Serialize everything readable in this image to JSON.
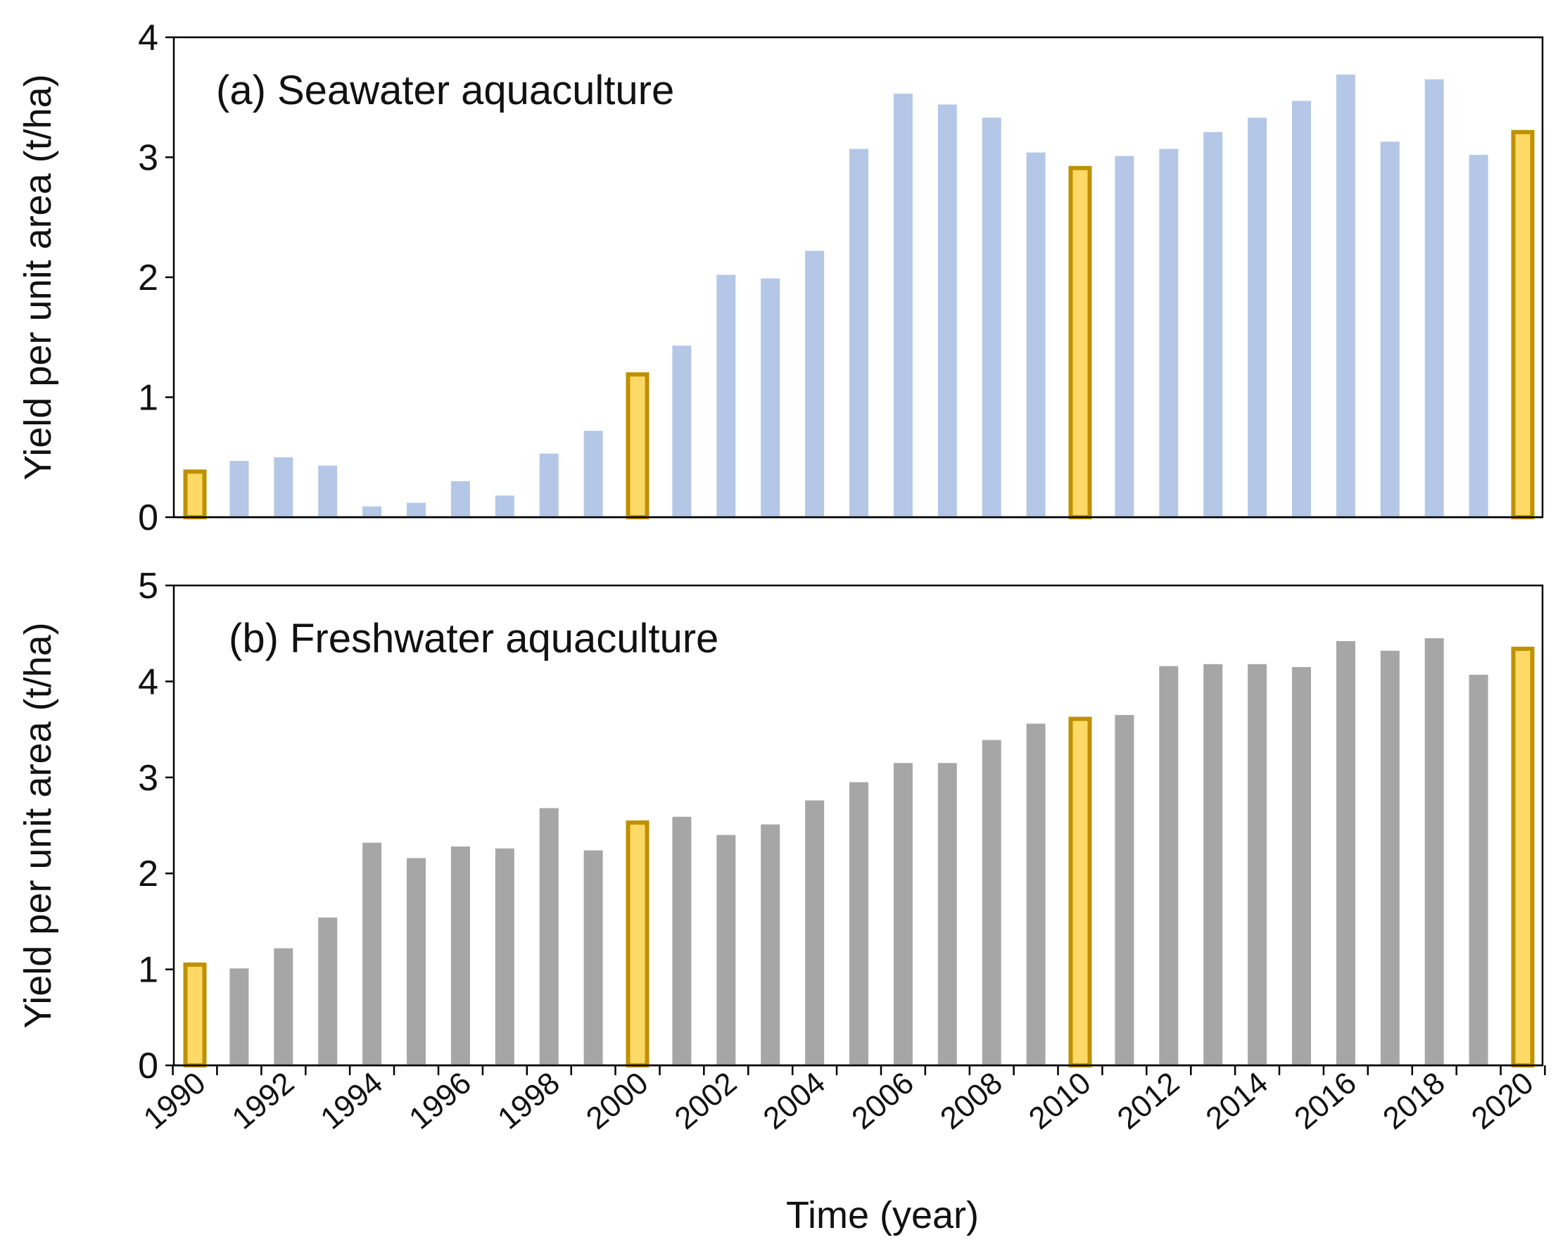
{
  "chart_data": [
    {
      "type": "bar",
      "panel": "a",
      "title": "(a) Seawater aquaculture",
      "ylabel": "Yield per unit area (t/ha)",
      "xlabel": "",
      "ylim": [
        0,
        4
      ],
      "yticks": [
        0,
        1,
        2,
        3,
        4
      ],
      "grid": false,
      "colors": {
        "bar": "#b4c7e7",
        "highlight_fill": "#ffd966",
        "highlight_border": "#bf9000"
      },
      "highlight_years": [
        1990,
        2000,
        2010,
        2020
      ],
      "x": [
        1990,
        1991,
        1992,
        1993,
        1994,
        1995,
        1996,
        1997,
        1998,
        1999,
        2000,
        2001,
        2002,
        2003,
        2004,
        2005,
        2006,
        2007,
        2008,
        2009,
        2010,
        2011,
        2012,
        2013,
        2014,
        2015,
        2016,
        2017,
        2018,
        2019,
        2020
      ],
      "values": [
        0.38,
        0.47,
        0.5,
        0.43,
        0.09,
        0.12,
        0.3,
        0.18,
        0.53,
        0.72,
        1.19,
        1.43,
        2.02,
        1.99,
        2.22,
        3.07,
        3.53,
        3.44,
        3.33,
        3.04,
        2.91,
        3.01,
        3.07,
        3.21,
        3.33,
        3.47,
        3.69,
        3.13,
        3.65,
        3.02,
        3.21
      ]
    },
    {
      "type": "bar",
      "panel": "b",
      "title": "(b) Freshwater aquaculture",
      "ylabel": "Yield per unit area (t/ha)",
      "xlabel": "Time (year)",
      "ylim": [
        0,
        5
      ],
      "yticks": [
        0,
        1,
        2,
        3,
        4,
        5
      ],
      "grid": false,
      "colors": {
        "bar": "#a6a6a6",
        "highlight_fill": "#ffd966",
        "highlight_border": "#bf9000"
      },
      "highlight_years": [
        1990,
        2000,
        2010,
        2020
      ],
      "x": [
        1990,
        1991,
        1992,
        1993,
        1994,
        1995,
        1996,
        1997,
        1998,
        1999,
        2000,
        2001,
        2002,
        2003,
        2004,
        2005,
        2006,
        2007,
        2008,
        2009,
        2010,
        2011,
        2012,
        2013,
        2014,
        2015,
        2016,
        2017,
        2018,
        2019,
        2020
      ],
      "xtick_labels": [
        "1990",
        "1992",
        "1994",
        "1996",
        "1998",
        "2000",
        "2002",
        "2004",
        "2006",
        "2008",
        "2010",
        "2012",
        "2014",
        "2016",
        "2018",
        "2020"
      ],
      "values": [
        1.05,
        1.01,
        1.22,
        1.54,
        2.32,
        2.16,
        2.28,
        2.26,
        2.68,
        2.24,
        2.53,
        2.59,
        2.4,
        2.51,
        2.76,
        2.95,
        3.15,
        3.15,
        3.39,
        3.56,
        3.61,
        3.65,
        4.16,
        4.18,
        4.18,
        4.15,
        4.42,
        4.32,
        4.45,
        4.07,
        4.34
      ]
    }
  ]
}
